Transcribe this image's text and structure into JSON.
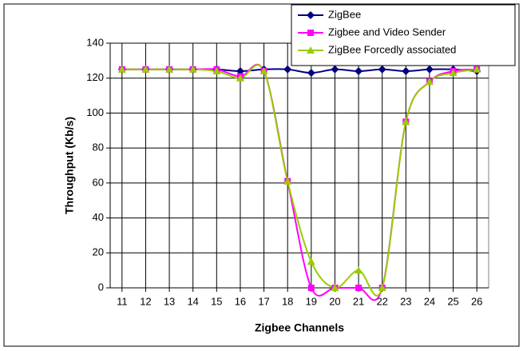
{
  "chart_data": {
    "type": "line",
    "x_label": "Zigbee Channels",
    "y_label": "Throughput (Kb/s)",
    "x": [
      11,
      12,
      13,
      14,
      15,
      16,
      17,
      18,
      19,
      20,
      21,
      22,
      23,
      24,
      25,
      26
    ],
    "series": [
      {
        "name": "ZigBee",
        "color": "#000080",
        "marker": "diamond",
        "values": [
          125,
          125,
          125,
          125,
          125,
          124,
          125,
          125,
          123,
          125,
          124,
          125,
          124,
          125,
          125,
          124
        ]
      },
      {
        "name": "Zigbee and Video Sender",
        "color": "#ff00ff",
        "marker": "square",
        "values": [
          125,
          125,
          125,
          125,
          125,
          121,
          124,
          61,
          0,
          0,
          0,
          0,
          95,
          118,
          124,
          125
        ]
      },
      {
        "name": "ZigBee Forcedly associated",
        "color": "#99cc00",
        "marker": "triangle",
        "values": [
          125,
          125,
          125,
          125,
          124,
          120,
          124,
          61,
          15,
          0,
          10,
          0,
          95,
          118,
          123,
          125
        ]
      }
    ],
    "xlim": [
      10.5,
      26.5
    ],
    "xticks": [
      11,
      12,
      13,
      14,
      15,
      16,
      17,
      18,
      19,
      20,
      21,
      22,
      23,
      24,
      25,
      26
    ],
    "ylim": [
      0,
      140
    ],
    "yticks": [
      0,
      20,
      40,
      60,
      80,
      100,
      120,
      140
    ],
    "grid": true,
    "smooth": true,
    "legend": "top-right"
  }
}
